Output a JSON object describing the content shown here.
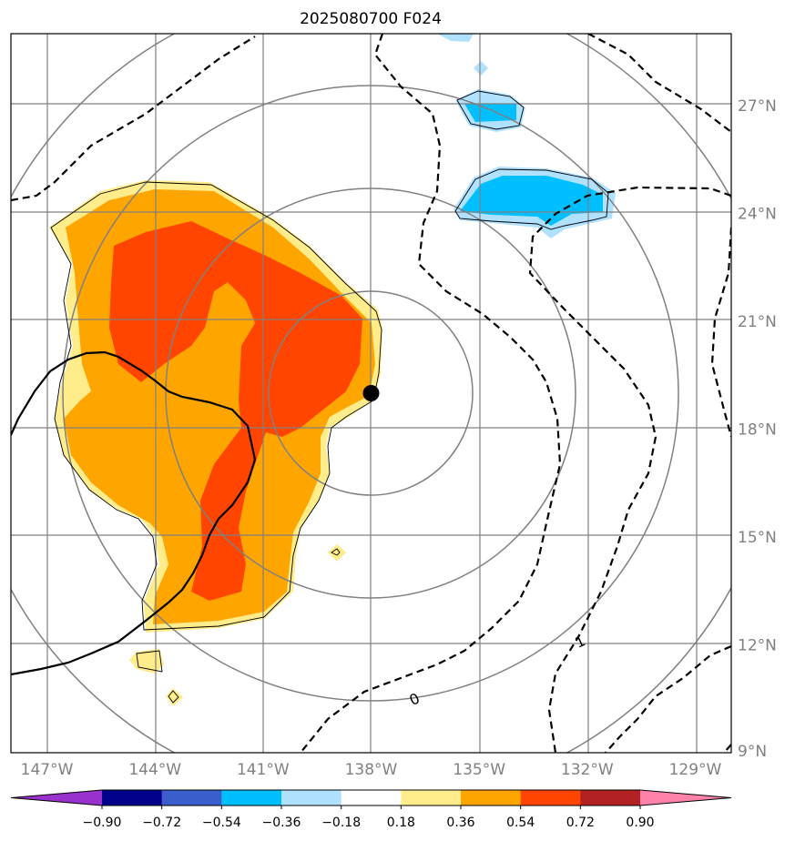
{
  "title": "2025080700 F024",
  "map": {
    "lon_range": [
      -148,
      -128
    ],
    "lat_range": [
      9,
      29
    ],
    "lon_ticks": [
      {
        "value": -147,
        "label": "147°W"
      },
      {
        "value": -144,
        "label": "144°W"
      },
      {
        "value": -141,
        "label": "141°W"
      },
      {
        "value": -138,
        "label": "138°W"
      },
      {
        "value": -135,
        "label": "135°W"
      },
      {
        "value": -132,
        "label": "132°W"
      },
      {
        "value": -129,
        "label": "129°W"
      }
    ],
    "lat_ticks": [
      {
        "value": 9,
        "label": "9°N"
      },
      {
        "value": 12,
        "label": "12°N"
      },
      {
        "value": 15,
        "label": "15°N"
      },
      {
        "value": 18,
        "label": "18°N"
      },
      {
        "value": 21,
        "label": "21°N"
      },
      {
        "value": 24,
        "label": "24°N"
      },
      {
        "value": 27,
        "label": "27°N"
      }
    ],
    "storm_center": {
      "lon": -138,
      "lat": 19
    },
    "contour_labels": [
      {
        "text": "0",
        "lon": -136.8,
        "lat": 10.5
      },
      {
        "text": "1",
        "lon": -132.2,
        "lat": 12.1
      }
    ]
  },
  "colorbar": {
    "colors": [
      "#9932cc",
      "#00008b",
      "#3a5fcd",
      "#00bfff",
      "#b0e2ff",
      "#ffffff",
      "#ffec8b",
      "#ffa500",
      "#ff4500",
      "#b22222",
      "#ff82ab"
    ],
    "labels": [
      "−0.90",
      "−0.72",
      "−0.54",
      "−0.36",
      "−0.18",
      "0.18",
      "0.36",
      "0.54",
      "0.72",
      "0.90"
    ]
  },
  "colors": {
    "fill_yellow": "#ffec8b",
    "fill_orange": "#ffa500",
    "fill_red": "#ff4500",
    "fill_cyan": "#00bfff",
    "fill_lightblue": "#b0e2ff",
    "grid": "#808080"
  }
}
